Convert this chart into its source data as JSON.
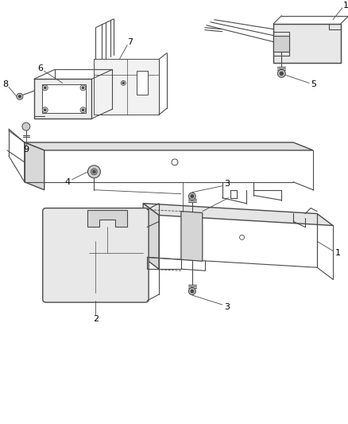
{
  "background_color": "#ffffff",
  "line_color": "#4a4a4a",
  "label_color": "#000000",
  "fig_width": 4.39,
  "fig_height": 5.33,
  "dpi": 100
}
